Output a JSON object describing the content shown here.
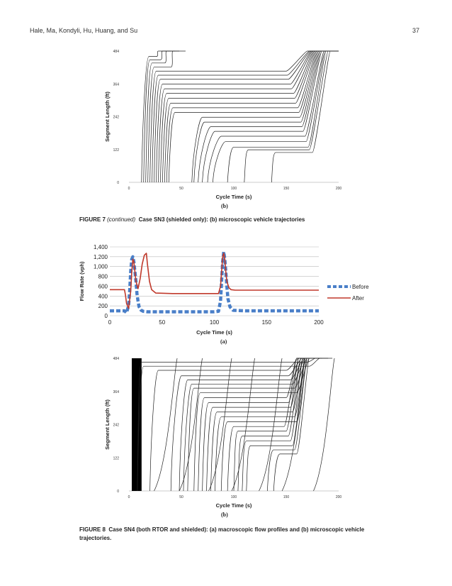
{
  "header": {
    "authors": "Hale, Ma, Kondyli, Hu, Huang, and Su",
    "page_number": "37"
  },
  "figure7": {
    "sublabel": "(b)",
    "caption_label": "FIGURE 7",
    "caption_continued": "(continued)",
    "caption_text": "Case SN3 (shielded only): (b) microscopic vehicle trajectories"
  },
  "figure8": {
    "sublabel_a": "(a)",
    "sublabel_b": "(b)",
    "caption_label": "FIGURE 8",
    "caption_text": "Case SN4 (both RTOR and shielded): (a) macroscopic flow profiles and (b) microscopic vehicle trajectories."
  },
  "chart_data": [
    {
      "id": "fig7b",
      "type": "line",
      "title": "",
      "xlabel": "Cycle Time (s)",
      "ylabel": "Segment Length (ft)",
      "xlim": [
        0,
        200
      ],
      "ylim": [
        0,
        484
      ],
      "xticks": [
        "0",
        "50",
        "100",
        "150",
        "200"
      ],
      "yticks": [
        "0",
        "122",
        "242",
        "364",
        "484"
      ],
      "grid": false,
      "legend": "none",
      "series_description": "vehicle trajectories (position vs time)",
      "trajectories": [
        {
          "t0": 12,
          "t_stop": 19,
          "y_stop": 464,
          "t1": 26,
          "t2": 28
        },
        {
          "t0": 14,
          "t_stop": 20,
          "y_stop": 452,
          "t1": 30,
          "t2": 32
        },
        {
          "t0": 16,
          "t_stop": 22,
          "y_stop": 440,
          "t1": 34,
          "t2": 36
        },
        {
          "t0": 18,
          "t_stop": 24,
          "y_stop": 425,
          "t1": 40,
          "t2": 42
        },
        {
          "t0": 20,
          "t_stop": 26,
          "y_stop": 410,
          "t1": 150,
          "t2": 170
        },
        {
          "t0": 22,
          "t_stop": 28,
          "y_stop": 395,
          "t1": 151,
          "t2": 172
        },
        {
          "t0": 24,
          "t_stop": 30,
          "y_stop": 380,
          "t1": 152,
          "t2": 173
        },
        {
          "t0": 26,
          "t_stop": 32,
          "y_stop": 362,
          "t1": 154,
          "t2": 174
        },
        {
          "t0": 28,
          "t_stop": 34,
          "y_stop": 345,
          "t1": 155,
          "t2": 175
        },
        {
          "t0": 30,
          "t_stop": 36,
          "y_stop": 328,
          "t1": 157,
          "t2": 176
        },
        {
          "t0": 32,
          "t_stop": 38,
          "y_stop": 310,
          "t1": 158,
          "t2": 177
        },
        {
          "t0": 34,
          "t_stop": 40,
          "y_stop": 292,
          "t1": 159,
          "t2": 178
        },
        {
          "t0": 36,
          "t_stop": 42,
          "y_stop": 275,
          "t1": 161,
          "t2": 179
        },
        {
          "t0": 38,
          "t_stop": 44,
          "y_stop": 258,
          "t1": 162,
          "t2": 180
        },
        {
          "t0": 60,
          "t_stop": 70,
          "y_stop": 240,
          "t1": 163,
          "t2": 181
        },
        {
          "t0": 62,
          "t_stop": 72,
          "y_stop": 222,
          "t1": 164,
          "t2": 182
        },
        {
          "t0": 66,
          "t_stop": 78,
          "y_stop": 205,
          "t1": 165,
          "t2": 183
        },
        {
          "t0": 70,
          "t_stop": 82,
          "y_stop": 188,
          "t1": 166,
          "t2": 184
        },
        {
          "t0": 75,
          "t_stop": 88,
          "y_stop": 170,
          "t1": 168,
          "t2": 186
        },
        {
          "t0": 80,
          "t_stop": 92,
          "y_stop": 150,
          "t1": 169,
          "t2": 187
        },
        {
          "t0": 94,
          "t_stop": 100,
          "y_stop": 130,
          "t1": 171,
          "t2": 188
        },
        {
          "t0": 110,
          "t_stop": 114,
          "y_stop": 120,
          "t1": 172,
          "t2": 190
        },
        {
          "t0": 136,
          "t_stop": 140,
          "y_stop": 110,
          "t1": 175,
          "t2": 192
        }
      ]
    },
    {
      "id": "fig8a",
      "type": "line",
      "title": "",
      "xlabel": "Cycle Time (s)",
      "ylabel": "Flow Rate (vph)",
      "xlim": [
        0,
        200
      ],
      "ylim": [
        0,
        1400
      ],
      "xticks": [
        "0",
        "50",
        "100",
        "150",
        "200"
      ],
      "yticks": [
        "0",
        "200",
        "400",
        "600",
        "800",
        "1,000",
        "1,200",
        "1,400"
      ],
      "grid": true,
      "legend": "right",
      "series": [
        {
          "name": "Before",
          "color": "#4a7fc8",
          "style": "dashed",
          "x": [
            0,
            14,
            16,
            18,
            19,
            20,
            21,
            22,
            23,
            24,
            25,
            26,
            27,
            28,
            30,
            32,
            36,
            50,
            100,
            104,
            106,
            107,
            108,
            109,
            110,
            111,
            112,
            113,
            115,
            118,
            130,
            150,
            200
          ],
          "y": [
            100,
            100,
            60,
            200,
            500,
            900,
            1150,
            1200,
            1100,
            900,
            700,
            450,
            300,
            180,
            110,
            90,
            80,
            80,
            80,
            90,
            300,
            700,
            1100,
            1300,
            1150,
            900,
            600,
            350,
            180,
            110,
            100,
            100,
            100
          ]
        },
        {
          "name": "After",
          "color": "#c0392b",
          "style": "solid",
          "x": [
            0,
            14,
            15,
            16,
            18,
            20,
            21,
            22,
            23,
            24,
            25,
            27,
            29,
            31,
            33,
            35,
            36,
            38,
            40,
            44,
            60,
            100,
            104,
            106,
            107,
            108,
            109,
            110,
            111,
            112,
            114,
            116,
            120,
            150,
            200
          ],
          "y": [
            530,
            530,
            420,
            250,
            150,
            500,
            900,
            1150,
            1100,
            900,
            700,
            550,
            750,
            1050,
            1230,
            1270,
            1050,
            700,
            530,
            460,
            450,
            450,
            450,
            600,
            900,
            1200,
            1270,
            1150,
            900,
            700,
            570,
            530,
            520,
            520,
            520
          ]
        }
      ]
    },
    {
      "id": "fig8b",
      "type": "line",
      "title": "",
      "xlabel": "Cycle Time (s)",
      "ylabel": "Segment Length (ft)",
      "xlim": [
        0,
        200
      ],
      "ylim": [
        0,
        484
      ],
      "xticks": [
        "0",
        "50",
        "100",
        "150",
        "200"
      ],
      "yticks": [
        "0",
        "122",
        "242",
        "364",
        "484"
      ],
      "grid": false,
      "legend": "none",
      "shaded_band": {
        "t_start": 0,
        "t_end": 8,
        "color": "#000000"
      },
      "trajectories": [
        {
          "t0": 8,
          "t_stop": 12,
          "y_stop": 470,
          "t1": 170,
          "t2": 178
        },
        {
          "t0": 8,
          "t_stop": 14,
          "y_stop": 455,
          "t1": 172,
          "t2": 182
        },
        {
          "t0": 20,
          "t_stop": 28,
          "y_stop": 440,
          "t1": 150,
          "t2": 162
        },
        {
          "t0": 40,
          "t_stop": 50,
          "y_stop": 420,
          "t1": 152,
          "t2": 165
        },
        {
          "t0": 48,
          "t_stop": 56,
          "y_stop": 405,
          "t1": 154,
          "t2": 167
        },
        {
          "t0": 52,
          "t_stop": 60,
          "y_stop": 390,
          "t1": 156,
          "t2": 168
        },
        {
          "t0": 56,
          "t_stop": 62,
          "y_stop": 375,
          "t1": 158,
          "t2": 170
        },
        {
          "t0": 62,
          "t_stop": 68,
          "y_stop": 358,
          "t1": 160,
          "t2": 172
        },
        {
          "t0": 66,
          "t_stop": 72,
          "y_stop": 340,
          "t1": 150,
          "t2": 160
        },
        {
          "t0": 70,
          "t_stop": 76,
          "y_stop": 322,
          "t1": 152,
          "t2": 162
        },
        {
          "t0": 74,
          "t_stop": 80,
          "y_stop": 305,
          "t1": 154,
          "t2": 164
        },
        {
          "t0": 78,
          "t_stop": 84,
          "y_stop": 288,
          "t1": 156,
          "t2": 166
        },
        {
          "t0": 82,
          "t_stop": 88,
          "y_stop": 270,
          "t1": 158,
          "t2": 168
        },
        {
          "t0": 88,
          "t_stop": 94,
          "y_stop": 252,
          "t1": 160,
          "t2": 170
        },
        {
          "t0": 94,
          "t_stop": 100,
          "y_stop": 235,
          "t1": 148,
          "t2": 160
        },
        {
          "t0": 100,
          "t_stop": 104,
          "y_stop": 218,
          "t1": 150,
          "t2": 162
        },
        {
          "t0": 104,
          "t_stop": 108,
          "y_stop": 200,
          "t1": 152,
          "t2": 164
        },
        {
          "t0": 108,
          "t_stop": 112,
          "y_stop": 182,
          "t1": 154,
          "t2": 166
        },
        {
          "t0": 112,
          "t_stop": 116,
          "y_stop": 165,
          "t1": 156,
          "t2": 168
        },
        {
          "t0": 132,
          "t_stop": 138,
          "y_stop": 150,
          "t1": 158,
          "t2": 170
        },
        {
          "t0": 138,
          "t_stop": 144,
          "y_stop": 135,
          "t1": 160,
          "t2": 172
        }
      ],
      "free_flow": [
        {
          "t0": 24,
          "t1": 46
        },
        {
          "t0": 48,
          "t1": 70
        },
        {
          "t0": 76,
          "t1": 98
        },
        {
          "t0": 98,
          "t1": 120
        },
        {
          "t0": 124,
          "t1": 146
        },
        {
          "t0": 146,
          "t1": 168
        },
        {
          "t0": 176,
          "t1": 196
        }
      ]
    }
  ]
}
